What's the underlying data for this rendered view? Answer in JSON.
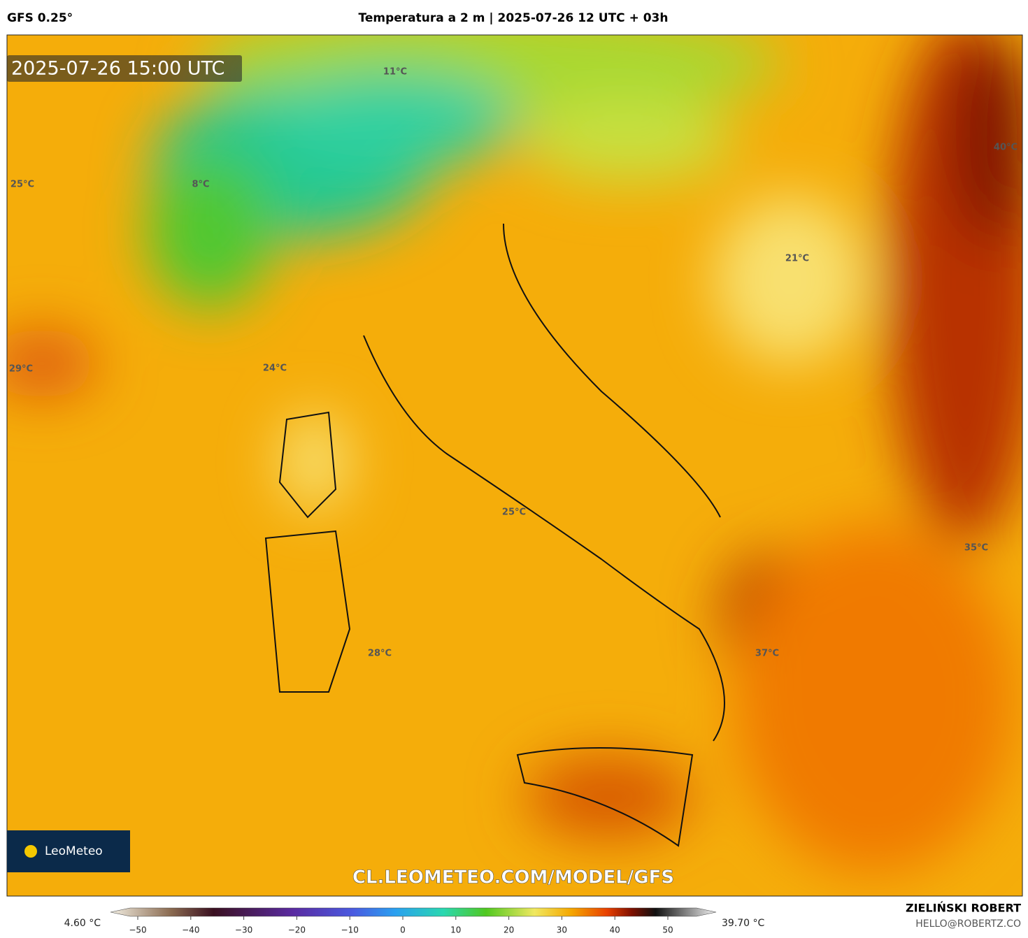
{
  "header": {
    "model": "GFS 0.25°",
    "title": "Temperatura a 2 m | 2025-07-26 12 UTC + 03h"
  },
  "timestamp": "2025-07-26 15:00 UTC",
  "map_labels": [
    "11°C",
    "8°C",
    "25°C",
    "29°C",
    "24°C",
    "40°C",
    "21°C",
    "25°C",
    "35°C",
    "37°C",
    "28°C"
  ],
  "logo": "LeoMeteo",
  "watermark": "CL.LEOMETEO.COM/MODEL/GFS",
  "colorbar": {
    "min_label": "4.60 °C",
    "max_label": "39.70 °C",
    "ticks": [
      {
        "value": -50,
        "label": "−50"
      },
      {
        "value": -40,
        "label": "−40"
      },
      {
        "value": -30,
        "label": "−30"
      },
      {
        "value": -20,
        "label": "−20"
      },
      {
        "value": -10,
        "label": "−10"
      },
      0,
      10,
      20,
      30,
      40,
      50
    ]
  },
  "footer": {
    "author": "ZIELIŃSKI ROBERT",
    "email": "HELLO@ROBERTZ.CO"
  }
}
